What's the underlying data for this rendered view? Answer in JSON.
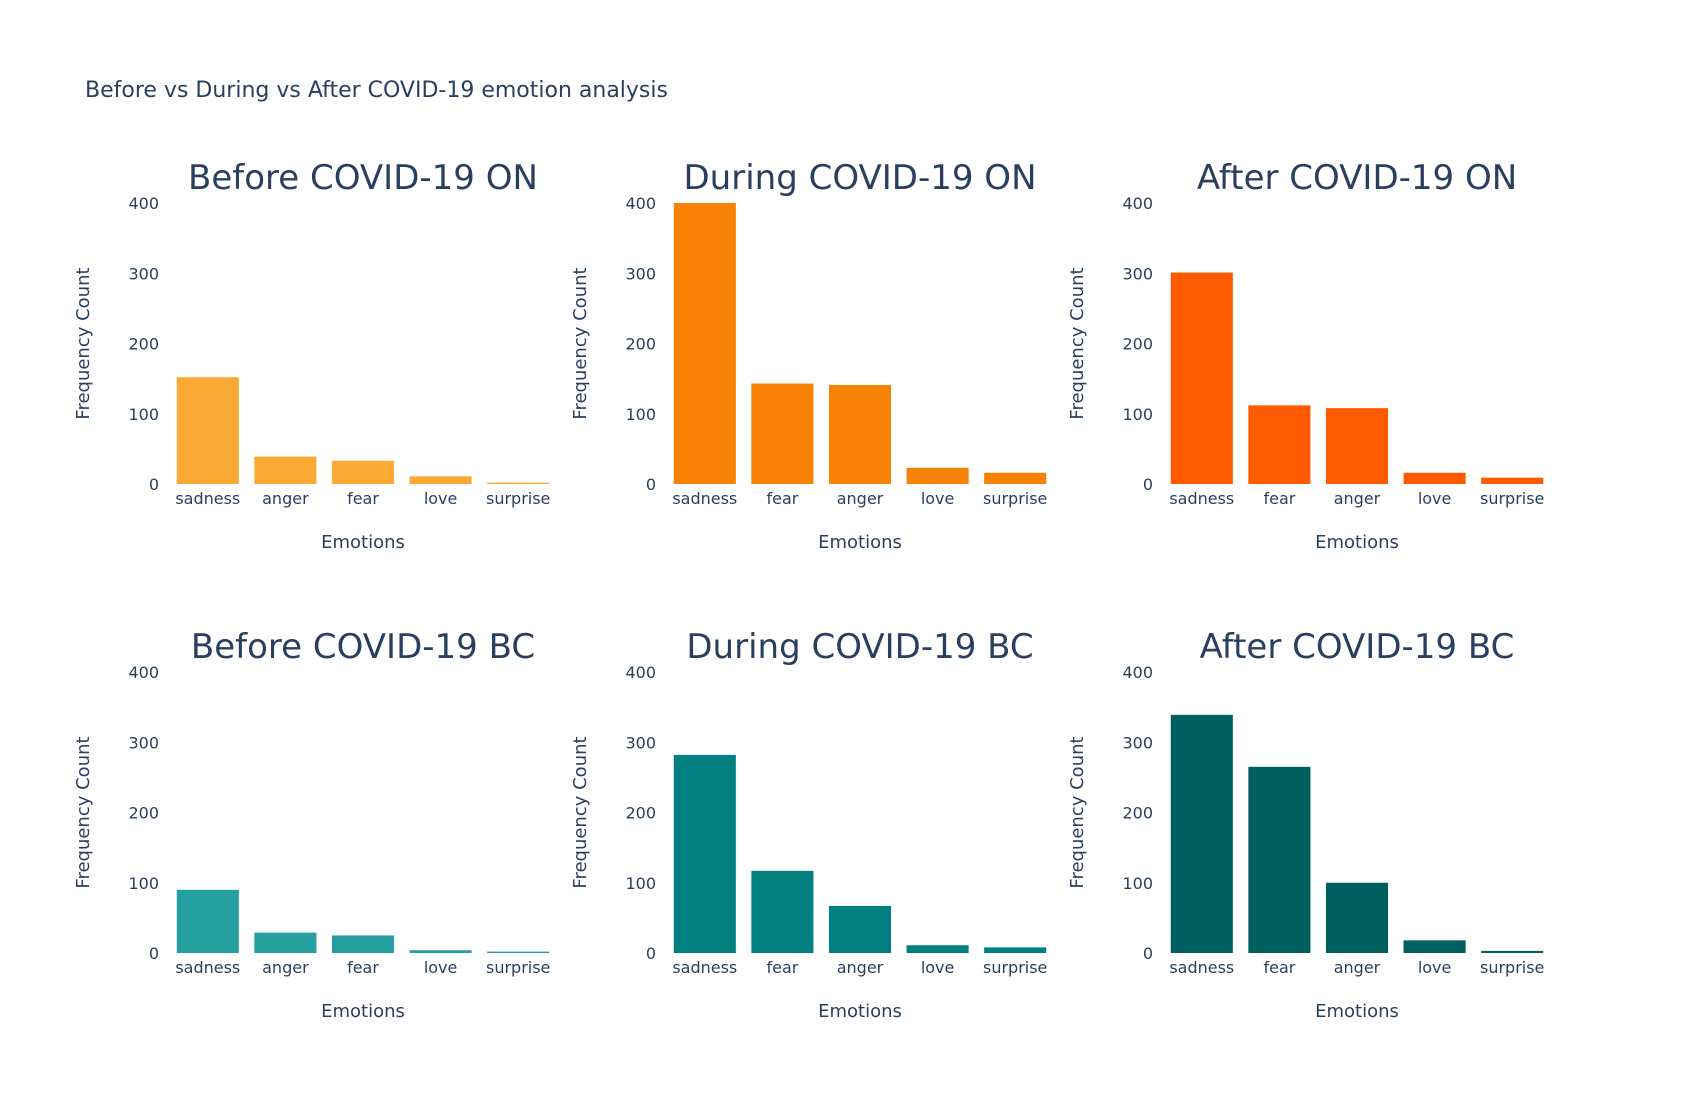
{
  "title": "Before vs During vs After COVID-19 emotion analysis",
  "chart_data": [
    {
      "type": "bar",
      "title": "Before COVID-19 ON",
      "xlabel": "Emotions",
      "ylabel": "Frequency Count",
      "categories": [
        "sadness",
        "anger",
        "fear",
        "love",
        "surprise"
      ],
      "values": [
        152,
        39,
        33,
        11,
        2
      ],
      "ylim": [
        0,
        400
      ],
      "yticks": [
        "0",
        "100",
        "200",
        "300",
        "400"
      ],
      "color": "#faa935"
    },
    {
      "type": "bar",
      "title": "During COVID-19 ON",
      "xlabel": "Emotions",
      "ylabel": "Frequency Count",
      "categories": [
        "sadness",
        "fear",
        "anger",
        "love",
        "surprise"
      ],
      "values": [
        400,
        143,
        141,
        23,
        16
      ],
      "ylim": [
        0,
        400
      ],
      "yticks": [
        "0",
        "100",
        "200",
        "300",
        "400"
      ],
      "color": "#f78205"
    },
    {
      "type": "bar",
      "title": "After COVID-19 ON",
      "xlabel": "Emotions",
      "ylabel": "Frequency Count",
      "categories": [
        "sadness",
        "fear",
        "anger",
        "love",
        "surprise"
      ],
      "values": [
        301,
        112,
        108,
        16,
        9
      ],
      "ylim": [
        0,
        400
      ],
      "yticks": [
        "0",
        "100",
        "200",
        "300",
        "400"
      ],
      "color": "#ff5a00"
    },
    {
      "type": "bar",
      "title": "Before COVID-19 BC",
      "xlabel": "Emotions",
      "ylabel": "Frequency Count",
      "categories": [
        "sadness",
        "anger",
        "fear",
        "love",
        "surprise"
      ],
      "values": [
        90,
        29,
        25,
        4,
        2
      ],
      "ylim": [
        0,
        400
      ],
      "yticks": [
        "0",
        "100",
        "200",
        "300",
        "400"
      ],
      "color": "#259fa0"
    },
    {
      "type": "bar",
      "title": "During COVID-19 BC",
      "xlabel": "Emotions",
      "ylabel": "Frequency Count",
      "categories": [
        "sadness",
        "fear",
        "anger",
        "love",
        "surprise"
      ],
      "values": [
        282,
        117,
        67,
        11,
        8
      ],
      "ylim": [
        0,
        400
      ],
      "yticks": [
        "0",
        "100",
        "200",
        "300",
        "400"
      ],
      "color": "#008080"
    },
    {
      "type": "bar",
      "title": "After COVID-19 BC",
      "xlabel": "Emotions",
      "ylabel": "Frequency Count",
      "categories": [
        "sadness",
        "fear",
        "anger",
        "love",
        "surprise"
      ],
      "values": [
        339,
        265,
        100,
        18,
        3
      ],
      "ylim": [
        0,
        400
      ],
      "yticks": [
        "0",
        "100",
        "200",
        "300",
        "400"
      ],
      "color": "#005f5f"
    }
  ]
}
